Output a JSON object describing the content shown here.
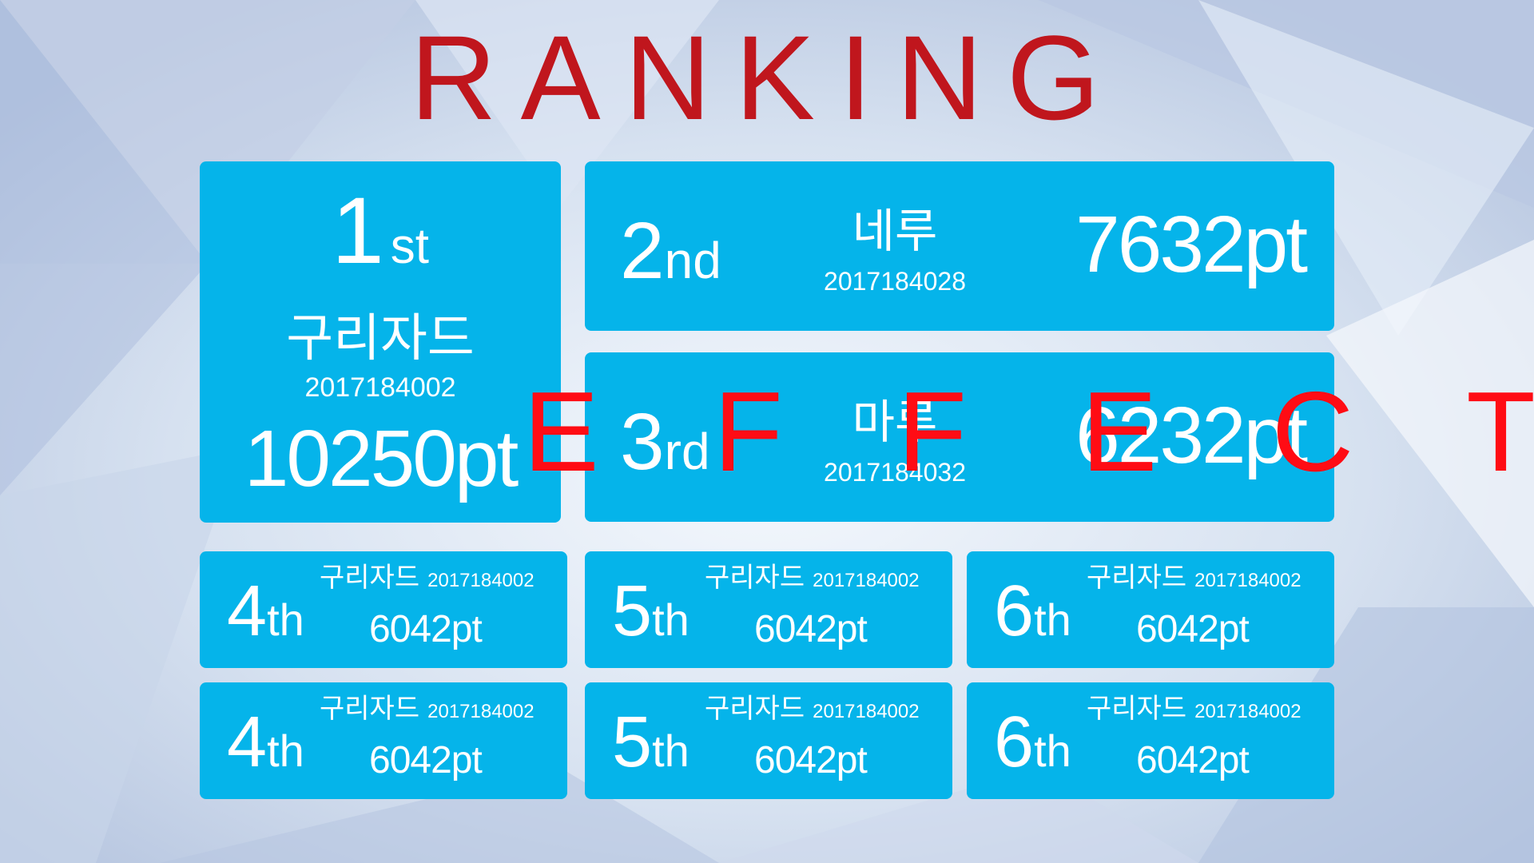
{
  "title": "RANKING",
  "overlay_text": "E F F E C T",
  "colors": {
    "card": "#05b4ea",
    "title": "#c0161d",
    "overlay": "#ff0c14"
  },
  "top3": [
    {
      "rank_num": "1",
      "rank_suffix": "st",
      "name": "구리자드",
      "id": "2017184002",
      "points": "10250pt"
    },
    {
      "rank_num": "2",
      "rank_suffix": "nd",
      "name": "네루",
      "id": "2017184028",
      "points": "7632pt"
    },
    {
      "rank_num": "3",
      "rank_suffix": "rd",
      "name": "마루",
      "id": "2017184032",
      "points": "6232pt"
    }
  ],
  "others": [
    {
      "rank_num": "4",
      "rank_suffix": "th",
      "name": "구리자드",
      "id": "2017184002",
      "points": "6042pt"
    },
    {
      "rank_num": "5",
      "rank_suffix": "th",
      "name": "구리자드",
      "id": "2017184002",
      "points": "6042pt"
    },
    {
      "rank_num": "6",
      "rank_suffix": "th",
      "name": "구리자드",
      "id": "2017184002",
      "points": "6042pt"
    },
    {
      "rank_num": "4",
      "rank_suffix": "th",
      "name": "구리자드",
      "id": "2017184002",
      "points": "6042pt"
    },
    {
      "rank_num": "5",
      "rank_suffix": "th",
      "name": "구리자드",
      "id": "2017184002",
      "points": "6042pt"
    },
    {
      "rank_num": "6",
      "rank_suffix": "th",
      "name": "구리자드",
      "id": "2017184002",
      "points": "6042pt"
    }
  ]
}
